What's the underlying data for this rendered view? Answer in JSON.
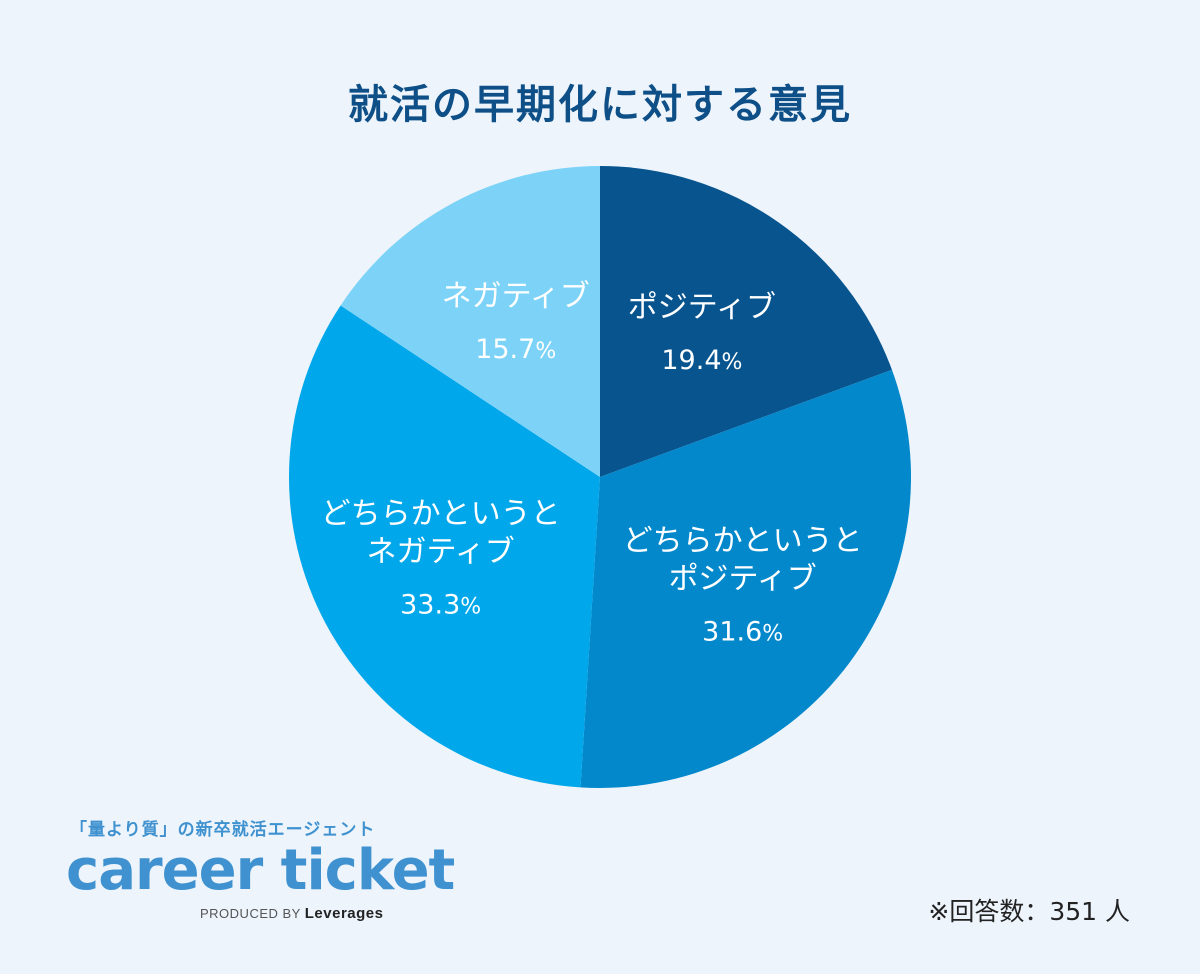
{
  "chart_data": {
    "type": "pie",
    "title": "就活の早期化に対する意見",
    "start": "top",
    "direction": "clockwise",
    "slices": [
      {
        "label_lines": [
          "ポジティブ"
        ],
        "value": 19.4,
        "display": "19.4",
        "unit": "%",
        "color": "#07548f"
      },
      {
        "label_lines": [
          "どちらかというと",
          "ポジティブ"
        ],
        "value": 31.6,
        "display": "31.6",
        "unit": "%",
        "color": "#0288cb"
      },
      {
        "label_lines": [
          "どちらかというと",
          "ネガティブ"
        ],
        "value": 33.3,
        "display": "33.3",
        "unit": "%",
        "color": "#00a7ea"
      },
      {
        "label_lines": [
          "ネガティブ"
        ],
        "value": 15.7,
        "display": "15.7",
        "unit": "%",
        "color": "#7dd3f7"
      }
    ]
  },
  "footer": {
    "tagline": "「量より質」の新卒就活エージェント",
    "logo": "career ticket",
    "produced_by": "PRODUCED BY",
    "produced_brand": "Leverages",
    "respondents": "※回答数：351 人"
  }
}
